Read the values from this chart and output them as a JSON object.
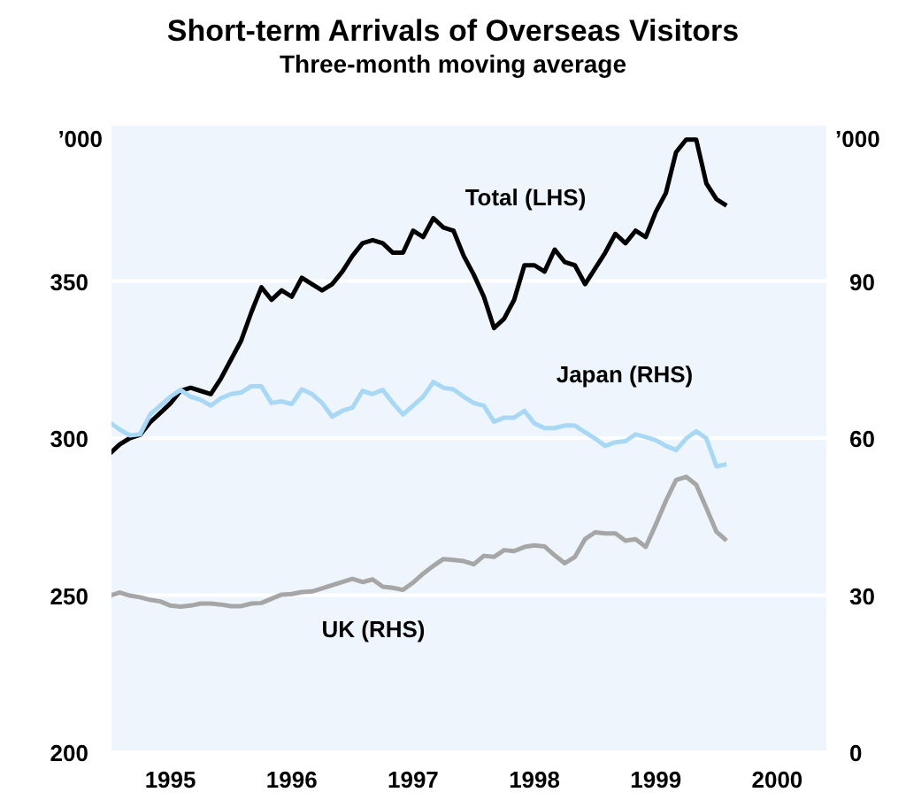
{
  "chart_data": {
    "type": "line",
    "title": "Short-term Arrivals of Overseas Visitors",
    "subtitle": "Three-month moving average",
    "ylabel": "’000",
    "y2label": "’000",
    "x": [
      1995.0,
      1995.083,
      1995.167,
      1995.25,
      1995.333,
      1995.417,
      1995.5,
      1995.583,
      1995.667,
      1995.75,
      1995.833,
      1995.917,
      1996.0,
      1996.083,
      1996.167,
      1996.25,
      1996.333,
      1996.417,
      1996.5,
      1996.583,
      1996.667,
      1996.75,
      1996.833,
      1996.917,
      1997.0,
      1997.083,
      1997.167,
      1997.25,
      1997.333,
      1997.417,
      1997.5,
      1997.583,
      1997.667,
      1997.75,
      1997.833,
      1997.917,
      1998.0,
      1998.083,
      1998.167,
      1998.25,
      1998.333,
      1998.417,
      1998.5,
      1998.583,
      1998.667,
      1998.75,
      1998.833,
      1998.917,
      1999.0,
      1999.083,
      1999.167,
      1999.25,
      1999.333,
      1999.417,
      1999.5,
      1999.583,
      1999.667,
      1999.75,
      1999.833,
      1999.917,
      2000.0,
      2000.083
    ],
    "series": [
      {
        "name": "Total (LHS)",
        "color": "#000000",
        "values": [
          295,
          298,
          300,
          301,
          305,
          308,
          311,
          315,
          316,
          315,
          314,
          319,
          325,
          331,
          340,
          348,
          344,
          347,
          345,
          351,
          349,
          347,
          349,
          353,
          358,
          362,
          363,
          362,
          359,
          359,
          366,
          364,
          370,
          367,
          366,
          358,
          352,
          345,
          335,
          338,
          344,
          355,
          355,
          353,
          360,
          356,
          355,
          349,
          354,
          359,
          365,
          362,
          366,
          364,
          372,
          378,
          391,
          395,
          395,
          381,
          376,
          374
        ]
      },
      {
        "name": "Japan (RHS)",
        "color": "#a8d8f4",
        "axis": "y2",
        "values": [
          63,
          61.6,
          60.5,
          60.7,
          64.5,
          66.2,
          67.9,
          69.2,
          67.9,
          67.3,
          66.2,
          67.6,
          68.4,
          68.7,
          69.9,
          69.9,
          66.7,
          67,
          66.5,
          69.3,
          68.4,
          66.7,
          64.1,
          65.2,
          65.8,
          69,
          68.4,
          69.2,
          66.7,
          64.5,
          66.2,
          67.9,
          70.7,
          69.6,
          69.3,
          67.9,
          66.7,
          66.2,
          63.1,
          63.9,
          63.9,
          65.2,
          62.8,
          61.9,
          61.9,
          62.4,
          62.4,
          61.1,
          59.9,
          58.5,
          59.2,
          59.4,
          60.7,
          60.2,
          59.6,
          58.5,
          57.7,
          59.9,
          61.3,
          59.9,
          54.6,
          55
        ]
      },
      {
        "name": "UK (RHS)",
        "color": "#a6a6a6",
        "axis": "y2",
        "values": [
          29.9,
          30.5,
          29.9,
          29.6,
          29.1,
          28.8,
          28,
          27.8,
          28,
          28.4,
          28.4,
          28.2,
          27.9,
          27.9,
          28.4,
          28.5,
          29.3,
          30.1,
          30.2,
          30.6,
          30.7,
          31.3,
          31.9,
          32.5,
          33.1,
          32.5,
          33,
          31.6,
          31.4,
          31,
          32.4,
          34.1,
          35.6,
          36.9,
          36.7,
          36.5,
          35.9,
          37.5,
          37.3,
          38.6,
          38.4,
          39.2,
          39.5,
          39.3,
          37.6,
          36.1,
          37.3,
          40.7,
          42,
          41.8,
          41.8,
          40.4,
          40.7,
          39.2,
          43.5,
          48,
          52,
          52.6,
          51.1,
          46.6,
          42.1,
          40.4
        ]
      }
    ],
    "xlim": [
      1995,
      2000.92
    ],
    "xticks": [
      {
        "value": 1995.5,
        "label": "1995"
      },
      {
        "value": 1996,
        "label": null
      },
      {
        "value": 1996.5,
        "label": "1996"
      },
      {
        "value": 1997,
        "label": null
      },
      {
        "value": 1997.5,
        "label": "1997"
      },
      {
        "value": 1998,
        "label": null
      },
      {
        "value": 1998.5,
        "label": "1998"
      },
      {
        "value": 1999,
        "label": null
      },
      {
        "value": 1999.5,
        "label": "1999"
      },
      {
        "value": 2000,
        "label": null
      },
      {
        "value": 2000.5,
        "label": "2000"
      }
    ],
    "ylim": [
      200,
      400
    ],
    "yticks": [
      200,
      250,
      300,
      350
    ],
    "y2lim": [
      0,
      120
    ],
    "y2ticks": [
      0,
      30,
      60,
      90
    ],
    "grid": "y",
    "legend": false,
    "marker": "none",
    "line_style": "solid"
  }
}
